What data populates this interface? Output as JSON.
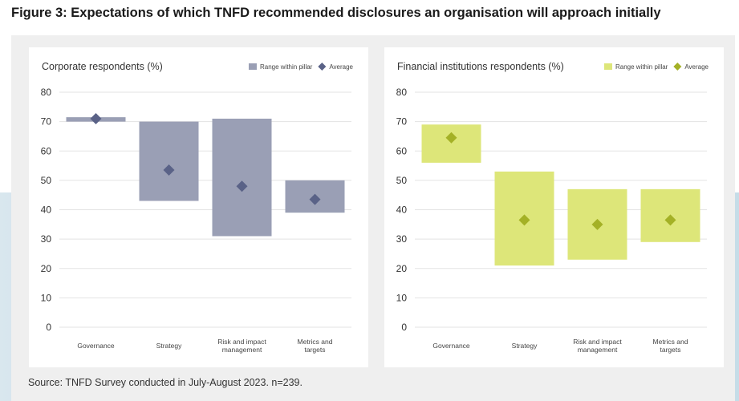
{
  "figure_title": "Figure 3: Expectations of which TNFD recommended disclosures an organisation will approach initially",
  "source": "Source: TNFD Survey conducted in July-August 2023. n=239.",
  "colors": {
    "corporate_bar": "#9a9fb5",
    "corporate_marker": "#5a6287",
    "financial_bar": "#dde679",
    "financial_marker": "#a4b126"
  },
  "chart_data": [
    {
      "type": "floating-bar",
      "title": "Corporate respondents (%)",
      "legend": {
        "range": "Range within pillar",
        "average": "Average",
        "position": "top-right"
      },
      "categories": [
        [
          "Governance"
        ],
        [
          "Strategy"
        ],
        [
          "Risk and impact",
          "management"
        ],
        [
          "Metrics and",
          "targets"
        ]
      ],
      "series": [
        {
          "name": "Range within pillar",
          "low": [
            70,
            43,
            31,
            39
          ],
          "high": [
            71.5,
            70,
            71,
            50
          ]
        },
        {
          "name": "Average",
          "values": [
            71,
            53.5,
            48,
            43.5
          ]
        }
      ],
      "ylim": [
        0,
        80
      ],
      "yticks": [
        0,
        10,
        20,
        30,
        40,
        50,
        60,
        70,
        80
      ],
      "grid": true
    },
    {
      "type": "floating-bar",
      "title": "Financial institutions respondents (%)",
      "legend": {
        "range": "Range within pillar",
        "average": "Average",
        "position": "top-right"
      },
      "categories": [
        [
          "Governance"
        ],
        [
          "Strategy"
        ],
        [
          "Risk and impact",
          "management"
        ],
        [
          "Metrics and",
          "targets"
        ]
      ],
      "series": [
        {
          "name": "Range within pillar",
          "low": [
            56,
            21,
            23,
            29
          ],
          "high": [
            69,
            53,
            47,
            47
          ]
        },
        {
          "name": "Average",
          "values": [
            64.5,
            36.5,
            35,
            36.5
          ]
        }
      ],
      "ylim": [
        0,
        80
      ],
      "yticks": [
        0,
        10,
        20,
        30,
        40,
        50,
        60,
        70,
        80
      ],
      "grid": true
    }
  ]
}
